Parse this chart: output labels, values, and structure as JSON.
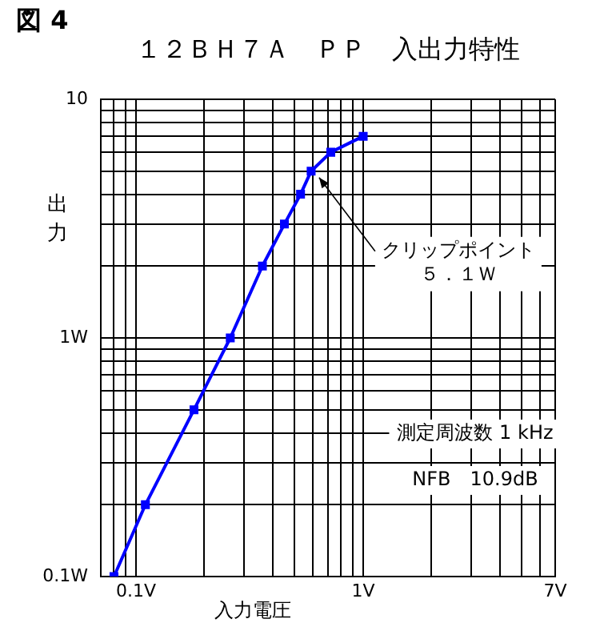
{
  "chart_data": {
    "type": "line",
    "title": "図 4",
    "subtitle": "１２ＢＨ７Ａ　ＰＰ　入出力特性",
    "xlabel": "入力電圧",
    "ylabel": "出力",
    "series": [
      {
        "color": "#0000ff",
        "x": [
          0.08,
          0.11,
          0.18,
          0.26,
          0.36,
          0.45,
          0.53,
          0.59,
          0.72,
          1.0
        ],
        "values": [
          0.1,
          0.2,
          0.5,
          1,
          2,
          3,
          4,
          5,
          6,
          7
        ]
      }
    ],
    "log": "xy",
    "xlim": [
      0.07,
      7
    ],
    "ylim": [
      0.1,
      10
    ],
    "xticks": [
      {
        "value": 0.07,
        "label": null
      },
      {
        "value": 0.08,
        "label": null
      },
      {
        "value": 0.09,
        "label": null
      },
      {
        "value": 0.1,
        "label": "0.1V"
      },
      {
        "value": 0.2,
        "label": null
      },
      {
        "value": 0.3,
        "label": null
      },
      {
        "value": 0.4,
        "label": null
      },
      {
        "value": 0.5,
        "label": null
      },
      {
        "value": 0.6,
        "label": null
      },
      {
        "value": 0.7,
        "label": null
      },
      {
        "value": 0.8,
        "label": null
      },
      {
        "value": 0.9,
        "label": null
      },
      {
        "value": 1,
        "label": "1V"
      },
      {
        "value": 2,
        "label": null
      },
      {
        "value": 3,
        "label": null
      },
      {
        "value": 4,
        "label": null
      },
      {
        "value": 5,
        "label": null
      },
      {
        "value": 6,
        "label": null
      },
      {
        "value": 7,
        "label": "7V"
      }
    ],
    "yticks": [
      {
        "value": 0.1,
        "label": "0.1W"
      },
      {
        "value": 0.2,
        "label": null
      },
      {
        "value": 0.3,
        "label": null
      },
      {
        "value": 0.4,
        "label": null
      },
      {
        "value": 0.5,
        "label": null
      },
      {
        "value": 0.6,
        "label": null
      },
      {
        "value": 0.7,
        "label": null
      },
      {
        "value": 0.8,
        "label": null
      },
      {
        "value": 0.9,
        "label": null
      },
      {
        "value": 1,
        "label": "1W"
      },
      {
        "value": 2,
        "label": null
      },
      {
        "value": 3,
        "label": null
      },
      {
        "value": 4,
        "label": null
      },
      {
        "value": 5,
        "label": null
      },
      {
        "value": 6,
        "label": null
      },
      {
        "value": 7,
        "label": null
      },
      {
        "value": 8,
        "label": null
      },
      {
        "value": 9,
        "label": null
      },
      {
        "value": 10,
        "label": "10"
      }
    ],
    "grid": true,
    "legend": false,
    "marker": "square",
    "line_style": "solid",
    "annotations": [
      {
        "text": "クリップポイント５．１Ｗ",
        "x": 0.59,
        "y": 5
      },
      "測定周波数 1 kHz",
      "NFB　10.9dB"
    ]
  }
}
